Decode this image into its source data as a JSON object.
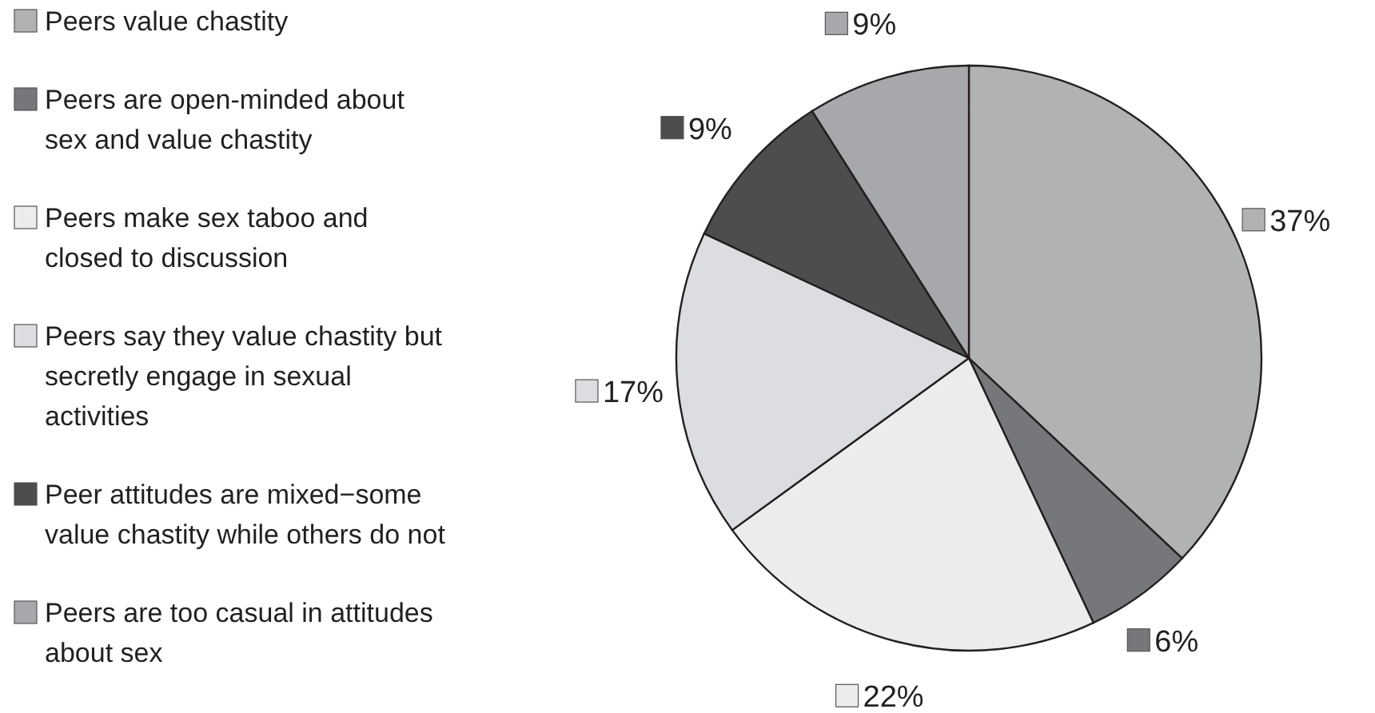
{
  "chart_data": {
    "type": "pie",
    "categories": [
      "Peers value chastity",
      "Peers are open-minded about sex and value chastity",
      "Peers make sex taboo and closed to discussion",
      "Peers say they value chastity but secretly engage in sexual activities",
      "Peer attitudes are mixed−some value chastity while others do not",
      "Peers are too casual in attitudes about sex"
    ],
    "values": [
      37,
      6,
      22,
      17,
      9,
      9
    ],
    "value_labels": [
      "37%",
      "6%",
      "22%",
      "17%",
      "9%",
      "9%"
    ],
    "colors": [
      "#b1b2b4",
      "#76777b",
      "#ececed",
      "#dcdde0",
      "#4d4d50",
      "#a7a8ab"
    ],
    "legend": "left"
  }
}
